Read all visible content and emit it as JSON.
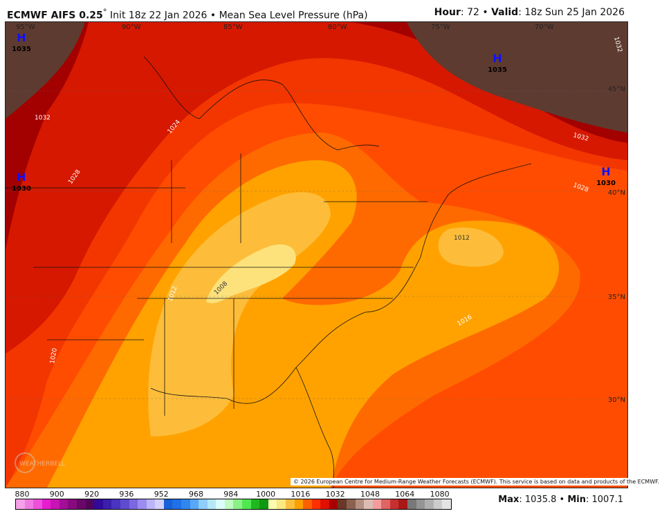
{
  "header": {
    "model": "ECMWF AIFS 0.25",
    "degree": "°",
    "init": "Init 18z 22 Jan 2026",
    "sep": "•",
    "field": "Mean Sea Level Pressure (hPa)",
    "hour_label": "Hour",
    "hour": "72",
    "valid_label": "Valid",
    "valid": "18z Sun 25 Jan 2026"
  },
  "map": {
    "lon_labels": [
      "95°W",
      "90°W",
      "85°W",
      "80°W",
      "75°W",
      "70°W"
    ],
    "lat_labels": [
      "45°N",
      "40°N",
      "35°N",
      "30°N"
    ],
    "highs": [
      {
        "symbol": "H",
        "value": "1035"
      },
      {
        "symbol": "H",
        "value": "1030"
      },
      {
        "symbol": "H",
        "value": "1035"
      },
      {
        "symbol": "H",
        "value": "1030"
      }
    ],
    "contour_labels": [
      "1032",
      "1028",
      "1024",
      "1020",
      "1016",
      "1012",
      "1008",
      "1012",
      "1032",
      "1028",
      "1032"
    ],
    "band_colors": {
      "ge1036": "#5e3b30",
      "1032": "#a30000",
      "1028": "#d61800",
      "1024": "#f33600",
      "1020": "#ff4c00",
      "1016": "#ff6a00",
      "1012": "#ffa200",
      "1008": "#fdbd3a",
      "lt1008": "#fde27c"
    },
    "watermark": "WEATHERBELL",
    "copyright": "© 2026 European Centre for Medium-Range Weather Forecasts (ECMWF). This service is based on data and products of the ECMWF."
  },
  "colorbar": {
    "ticks": [
      "880",
      "900",
      "920",
      "936",
      "952",
      "968",
      "984",
      "1000",
      "1016",
      "1032",
      "1048",
      "1064",
      "1080"
    ],
    "colors": [
      "#f5a0e8",
      "#f07ae0",
      "#ee50dc",
      "#e81cd0",
      "#c814b4",
      "#a40e98",
      "#880a80",
      "#6a0666",
      "#50045a",
      "#320a9a",
      "#3a1eac",
      "#4a34c0",
      "#5e4cd0",
      "#7a68e0",
      "#9c8cf0",
      "#bcb4f8",
      "#d4d0fc",
      "#1860d8",
      "#2070e8",
      "#3086f0",
      "#58a8f8",
      "#90ccfc",
      "#b4e8f8",
      "#dcfcfc",
      "#c0fcc0",
      "#8cf088",
      "#50e850",
      "#20b820",
      "#109810",
      "#fcfcb0",
      "#fce880",
      "#fcc040",
      "#fca000",
      "#fc6000",
      "#fc3000",
      "#e01000",
      "#a80000",
      "#6a3828",
      "#8c6050",
      "#b49080",
      "#dcbcb4",
      "#f49c9c",
      "#e06464",
      "#c83030",
      "#a81818",
      "#787878",
      "#949494",
      "#b0b0b0",
      "#cccccc",
      "#e4e4e4"
    ]
  },
  "stats": {
    "max_label": "Max",
    "max": "1035.8",
    "min_label": "Min",
    "min": "1007.1"
  }
}
